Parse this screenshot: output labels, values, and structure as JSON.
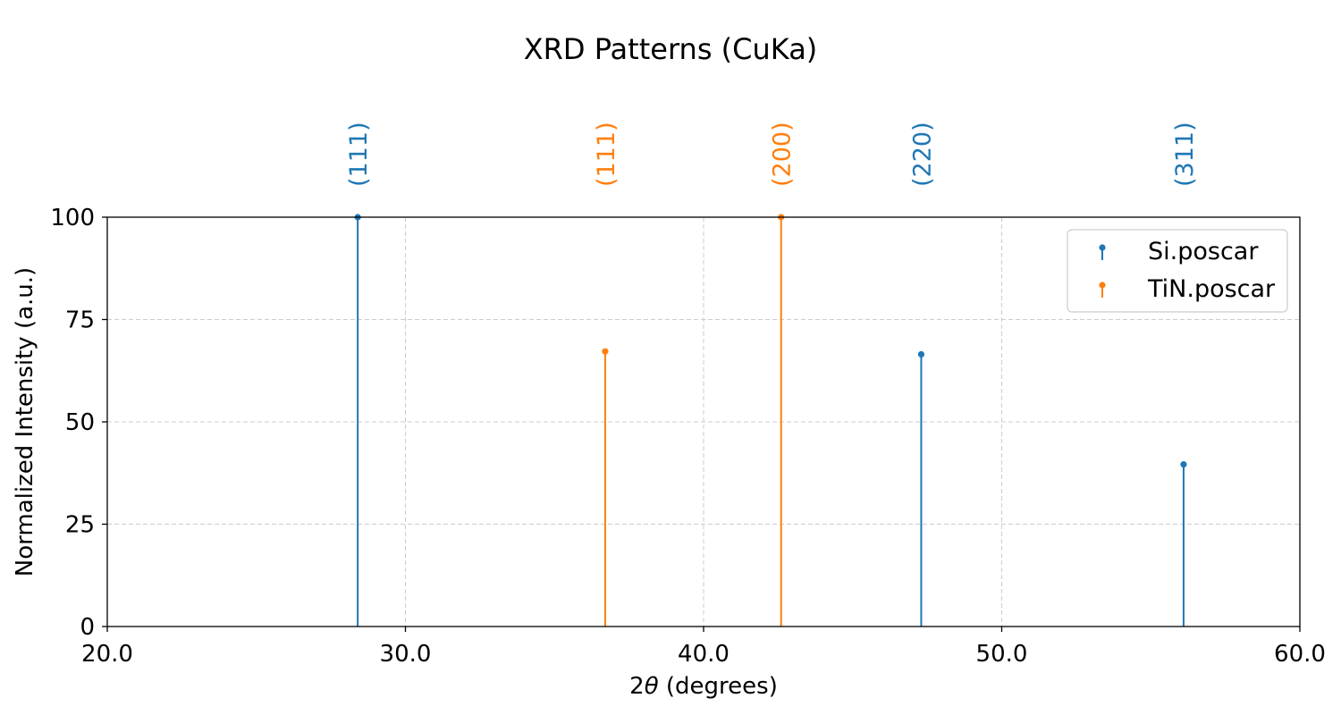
{
  "chart_data": {
    "type": "stem",
    "title": "XRD Patterns (CuKa)",
    "xlabel_prefix": "2",
    "xlabel_symbol": "θ",
    "xlabel_suffix": " (degrees)",
    "ylabel": "Normalized Intensity (a.u.)",
    "xlim": [
      20.0,
      60.0
    ],
    "ylim": [
      0,
      100
    ],
    "xticks": [
      20.0,
      30.0,
      40.0,
      50.0,
      60.0
    ],
    "xtick_labels": [
      "20.0",
      "30.0",
      "40.0",
      "50.0",
      "60.0"
    ],
    "yticks": [
      0,
      25,
      50,
      75,
      100
    ],
    "ytick_labels": [
      "0",
      "25",
      "50",
      "75",
      "100"
    ],
    "grid": true,
    "legend_position": "top-right",
    "series": [
      {
        "name": "Si.poscar",
        "color": "#1f77b4",
        "peaks": [
          {
            "x": 28.4,
            "y": 100,
            "label": "(111)"
          },
          {
            "x": 47.3,
            "y": 66.5,
            "label": "(220)"
          },
          {
            "x": 56.1,
            "y": 39.6,
            "label": "(311)"
          }
        ]
      },
      {
        "name": "TiN.poscar",
        "color": "#ff7f0e",
        "peaks": [
          {
            "x": 36.7,
            "y": 67.2,
            "label": "(111)"
          },
          {
            "x": 42.6,
            "y": 100,
            "label": "(200)"
          }
        ]
      }
    ]
  }
}
